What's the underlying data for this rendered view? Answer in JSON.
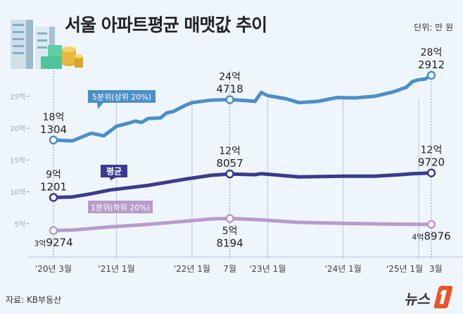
{
  "title": "서울 아파트평균 매맷값 추이",
  "unit": "단위: 만 원",
  "source": "자료: KB부동산",
  "logo_text": "뉴스1",
  "chart_data": {
    "type": "line",
    "title": "서울 아파트평균 매맷값 추이",
    "ylabel": "단위: 만 원",
    "ylim": [
      0,
      27
    ],
    "y_ticks": [
      {
        "value": 5,
        "label": "5억"
      },
      {
        "value": 10,
        "label": "10억"
      },
      {
        "value": 15,
        "label": "15억"
      },
      {
        "value": 20,
        "label": "20억"
      },
      {
        "value": 25,
        "label": "25억"
      }
    ],
    "x_ticks": [
      {
        "date": "2020-03",
        "label": "'20년 3월"
      },
      {
        "date": "2021-01",
        "label": "'21년 1월"
      },
      {
        "date": "2022-01",
        "label": "'22년 1월"
      },
      {
        "date": "2022-07",
        "label": "7월"
      },
      {
        "date": "2023-01",
        "label": "'23년 1월"
      },
      {
        "date": "2024-01",
        "label": "'24년 1월"
      },
      {
        "date": "2025-01",
        "label": "'25년 1월"
      },
      {
        "date": "2025-03",
        "label": "3월"
      }
    ],
    "grid": "vertical",
    "series": [
      {
        "name": "5분위(상위 20%)",
        "color": "#4b8fc9",
        "points": [
          [
            "2020-03",
            18.13
          ],
          [
            "2020-06",
            18.0
          ],
          [
            "2020-09",
            19.2
          ],
          [
            "2020-11",
            18.8
          ],
          [
            "2021-01",
            20.3
          ],
          [
            "2021-03",
            20.8
          ],
          [
            "2021-04",
            21.1
          ],
          [
            "2021-05",
            20.9
          ],
          [
            "2021-06",
            21.5
          ],
          [
            "2021-08",
            21.6
          ],
          [
            "2021-09",
            22.4
          ],
          [
            "2021-10",
            22.6
          ],
          [
            "2021-12",
            23.6
          ],
          [
            "2022-01",
            24.0
          ],
          [
            "2022-04",
            24.4
          ],
          [
            "2022-07",
            24.47
          ],
          [
            "2022-10",
            24.3
          ],
          [
            "2022-11",
            24.2
          ],
          [
            "2022-12",
            25.6
          ],
          [
            "2023-01",
            25.1
          ],
          [
            "2023-04",
            24.6
          ],
          [
            "2023-06",
            24.0
          ],
          [
            "2023-09",
            24.2
          ],
          [
            "2023-12",
            24.8
          ],
          [
            "2024-03",
            24.75
          ],
          [
            "2024-06",
            25.0
          ],
          [
            "2024-09",
            25.7
          ],
          [
            "2024-11",
            26.4
          ],
          [
            "2024-12",
            27.3
          ],
          [
            "2025-01",
            27.6
          ],
          [
            "2025-02",
            27.7
          ],
          [
            "2025-03",
            28.29
          ]
        ],
        "labels": [
          {
            "date": "2020-03",
            "value": 18.13,
            "top": "18억",
            "bottom": "1304"
          },
          {
            "date": "2022-07",
            "value": 24.47,
            "top": "24억",
            "bottom": "4718"
          },
          {
            "date": "2025-03",
            "value": 28.29,
            "top": "28억",
            "bottom": "2912"
          }
        ]
      },
      {
        "name": "평균",
        "color": "#3b3a8c",
        "points": [
          [
            "2020-03",
            9.12
          ],
          [
            "2020-06",
            9.2
          ],
          [
            "2020-09",
            9.7
          ],
          [
            "2020-12",
            10.3
          ],
          [
            "2021-06",
            11.0
          ],
          [
            "2021-12",
            12.0
          ],
          [
            "2022-04",
            12.6
          ],
          [
            "2022-07",
            12.81
          ],
          [
            "2022-11",
            12.7
          ],
          [
            "2022-12",
            12.85
          ],
          [
            "2023-03",
            12.6
          ],
          [
            "2023-06",
            12.35
          ],
          [
            "2024-01",
            12.45
          ],
          [
            "2024-06",
            12.45
          ],
          [
            "2024-10",
            12.7
          ],
          [
            "2024-12",
            12.85
          ],
          [
            "2025-03",
            12.97
          ]
        ],
        "labels": [
          {
            "date": "2020-03",
            "value": 9.12,
            "top": "9억",
            "bottom": "1201"
          },
          {
            "date": "2022-07",
            "value": 12.81,
            "top": "12억",
            "bottom": "8057"
          },
          {
            "date": "2025-03",
            "value": 12.97,
            "top": "12억",
            "bottom": "9720"
          }
        ]
      },
      {
        "name": "1분위(하위 20%)",
        "color": "#b89bcb",
        "points": [
          [
            "2020-03",
            3.93
          ],
          [
            "2020-06",
            4.0
          ],
          [
            "2020-12",
            4.5
          ],
          [
            "2021-06",
            4.9
          ],
          [
            "2021-12",
            5.4
          ],
          [
            "2022-04",
            5.75
          ],
          [
            "2022-07",
            5.82
          ],
          [
            "2022-12",
            5.6
          ],
          [
            "2023-06",
            5.2
          ],
          [
            "2024-01",
            5.05
          ],
          [
            "2024-08",
            4.95
          ],
          [
            "2025-03",
            4.9
          ]
        ],
        "labels": [
          {
            "date": "2020-03",
            "value": 3.93,
            "top": "3억",
            "bottom": "9274",
            "inline": true
          },
          {
            "date": "2022-07",
            "value": 5.82,
            "top": "5억",
            "bottom": "8194"
          },
          {
            "date": "2025-03",
            "value": 4.9,
            "top": "4억",
            "bottom": "8976",
            "inline": true
          }
        ]
      }
    ]
  }
}
